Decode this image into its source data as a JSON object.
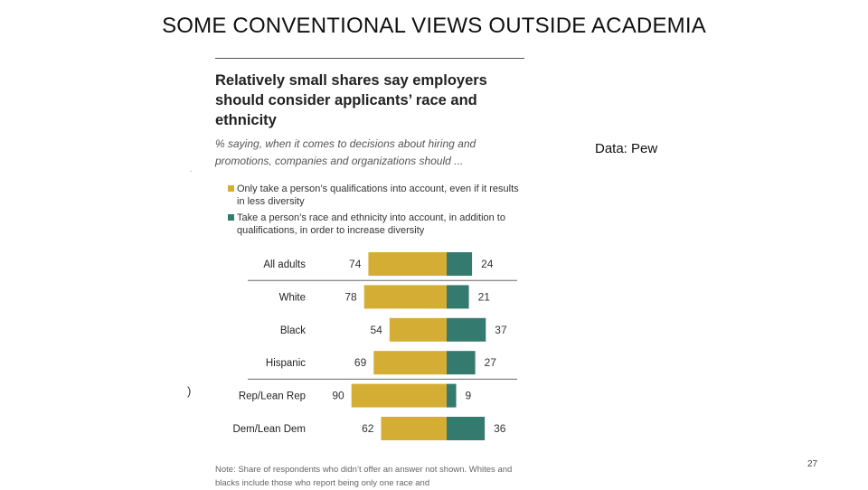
{
  "slide": {
    "title": "SOME CONVENTIONAL VIEWS OUTSIDE ACADEMIA",
    "source": "Data: Pew",
    "page_number": "27",
    "stray_paren": ")",
    "stray_dot": "."
  },
  "chart_data": {
    "type": "bar",
    "title": "Relatively small shares say employers should consider applicants’ race and ethnicity",
    "subtitle": "% saying, when it comes to decisions about hiring and promotions, companies and organizations should ...",
    "legend": [
      {
        "label": "Only take a person’s qualifications into account, even if it results in less diversity",
        "color": "#d4ad35"
      },
      {
        "label": "Take a person’s race and ethnicity into account, in addition to qualifications, in order to increase diversity",
        "color": "#357a6e"
      }
    ],
    "categories": [
      "All adults",
      "White",
      "Black",
      "Hispanic",
      "Rep/Lean Rep",
      "Dem/Lean Dem"
    ],
    "series": [
      {
        "values": [
          74,
          78,
          54,
          69,
          90,
          62
        ],
        "color": "#d4ad35"
      },
      {
        "values": [
          24,
          21,
          37,
          27,
          9,
          36
        ],
        "color": "#357a6e"
      }
    ],
    "note": "Note: Share of respondents who didn’t offer an answer not shown. Whites and blacks include those who report being only one race and"
  }
}
